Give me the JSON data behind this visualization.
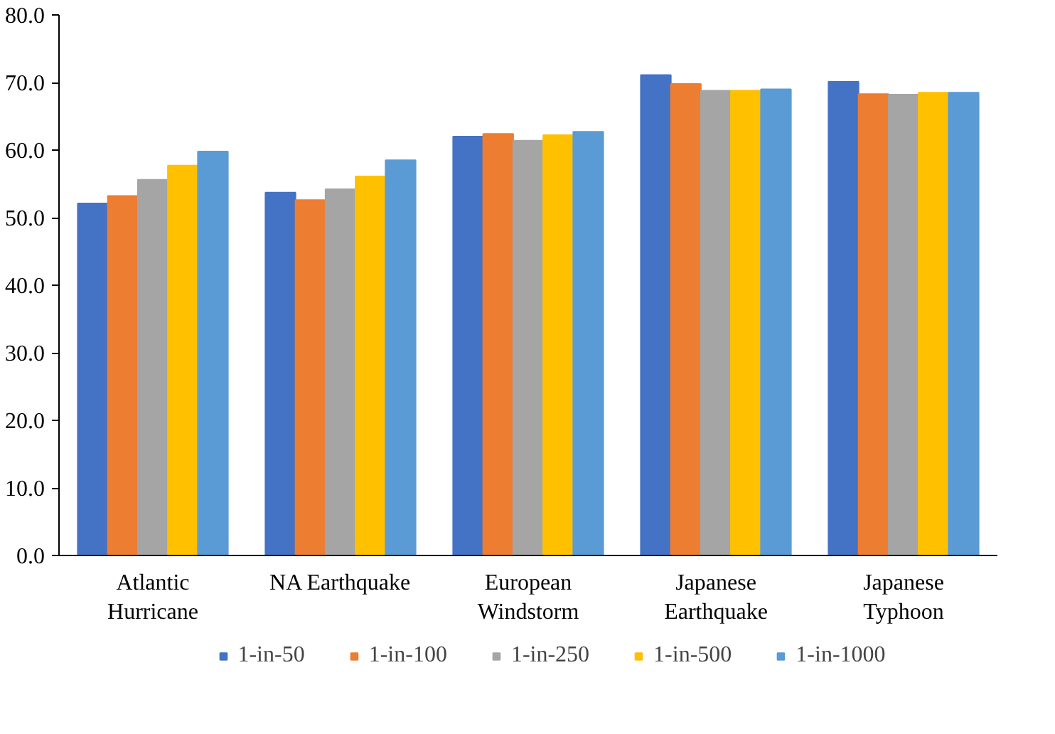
{
  "chart_data": {
    "type": "bar",
    "categories": [
      "Atlantic\nHurricane",
      "NA Earthquake",
      "European\nWindstorm",
      "Japanese\nEarthquake",
      "Japanese\nTyphoon"
    ],
    "series": [
      {
        "name": "1-in-50",
        "color": "#4472c4",
        "values": [
          52.1,
          53.7,
          62.0,
          71.1,
          70.1
        ]
      },
      {
        "name": "1-in-100",
        "color": "#ed7d31",
        "values": [
          53.2,
          52.6,
          62.4,
          69.8,
          68.3
        ]
      },
      {
        "name": "1-in-250",
        "color": "#a5a5a5",
        "values": [
          55.6,
          54.2,
          61.4,
          68.8,
          68.2
        ]
      },
      {
        "name": "1-in-500",
        "color": "#ffc000",
        "values": [
          57.7,
          56.1,
          62.2,
          68.8,
          68.5
        ]
      },
      {
        "name": "1-in-1000",
        "color": "#5b9bd5",
        "values": [
          59.8,
          58.5,
          62.7,
          69.0,
          68.5
        ]
      }
    ],
    "ylim": [
      0,
      80
    ],
    "yticks": [
      {
        "value": 0,
        "label": "0.0"
      },
      {
        "value": 10,
        "label": "10.0"
      },
      {
        "value": 20,
        "label": "20.0"
      },
      {
        "value": 30,
        "label": "30.0"
      },
      {
        "value": 40,
        "label": "40.0"
      },
      {
        "value": 50,
        "label": "50.0"
      },
      {
        "value": 60,
        "label": "60.0"
      },
      {
        "value": 70,
        "label": "70.0"
      },
      {
        "value": 80,
        "label": "80.0"
      }
    ],
    "grid": false,
    "legend": "bottom"
  }
}
